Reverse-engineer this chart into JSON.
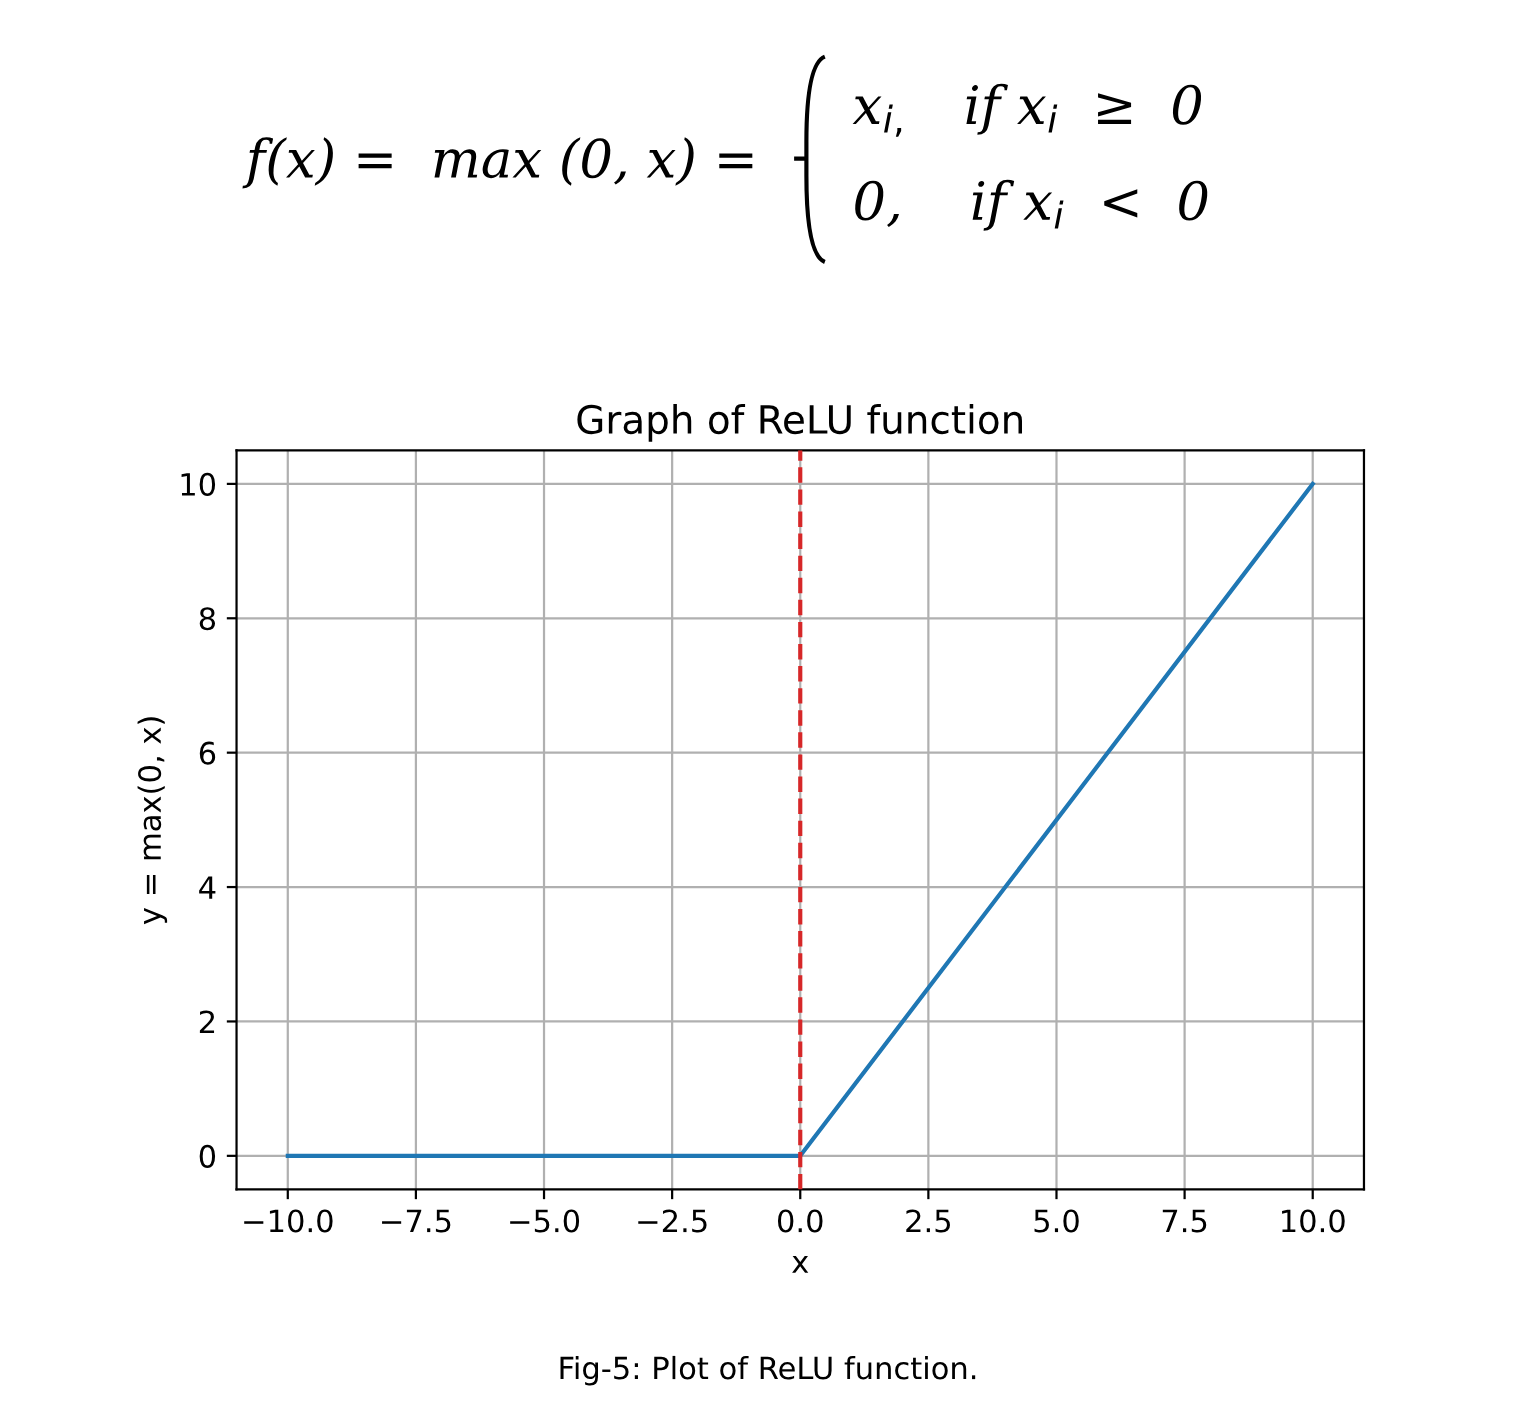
{
  "chart_data": {
    "type": "line",
    "title": "Graph of ReLU function",
    "xlabel": "x",
    "ylabel": "y = max(0, x)",
    "x": [
      -10,
      0,
      10
    ],
    "series": [
      {
        "color": "#1f77b4",
        "values": [
          0,
          0,
          10
        ]
      }
    ],
    "xlim": [
      -11,
      11
    ],
    "ylim": [
      -0.5,
      10.5
    ],
    "xticks": [
      {
        "value": -10,
        "label": "−10.0"
      },
      {
        "value": -7.5,
        "label": "−7.5"
      },
      {
        "value": -5,
        "label": "−5.0"
      },
      {
        "value": -2.5,
        "label": "−2.5"
      },
      {
        "value": 0,
        "label": "0.0"
      },
      {
        "value": 2.5,
        "label": "2.5"
      },
      {
        "value": 5,
        "label": "5.0"
      },
      {
        "value": 7.5,
        "label": "7.5"
      },
      {
        "value": 10,
        "label": "10.0"
      }
    ],
    "yticks": [
      0,
      2,
      4,
      6,
      8,
      10
    ],
    "grid": true,
    "ref_lines": [
      {
        "axis": "x",
        "value": 0,
        "color": "#d62728",
        "line_style": "dashed"
      }
    ],
    "annotations": [
      "f(x) =  max (0, x) =",
      "x$_{i,}$   if x$_{i}$  ≥  0",
      "0,    if x$_{i}$  <  0",
      "Fig-5: Plot of ReLU function."
    ]
  }
}
